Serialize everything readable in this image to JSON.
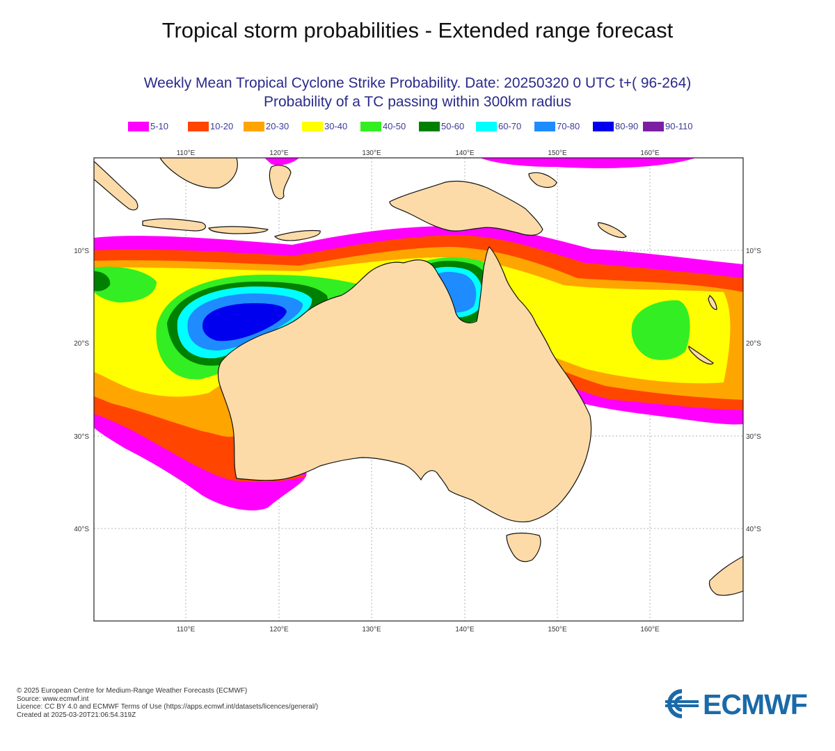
{
  "header": {
    "title": "Tropical storm probabilities - Extended range forecast"
  },
  "map": {
    "title_line1": "Weekly Mean Tropical Cyclone Strike Probability. Date: 20250320  0 UTC    t+( 96-264)",
    "title_line2": "Probability of a TC passing within  300km radius",
    "region": "Australia and surrounding ocean",
    "lon_labels": [
      "110°E",
      "120°E",
      "130°E",
      "140°E",
      "150°E",
      "160°E"
    ],
    "lat_labels": [
      "10°S",
      "20°S",
      "30°S",
      "40°S"
    ],
    "land_color": "#fcdba8",
    "legend": [
      {
        "label": "5-10",
        "color": "#ff00ff"
      },
      {
        "label": "10-20",
        "color": "#ff4500"
      },
      {
        "label": "20-30",
        "color": "#ffa500"
      },
      {
        "label": "30-40",
        "color": "#ffff00"
      },
      {
        "label": "40-50",
        "color": "#33ee22"
      },
      {
        "label": "50-60",
        "color": "#008000"
      },
      {
        "label": "60-70",
        "color": "#00ffff"
      },
      {
        "label": "70-80",
        "color": "#1e8cff"
      },
      {
        "label": "80-90",
        "color": "#0000ee"
      },
      {
        "label": "90-110",
        "color": "#7b1fa2"
      }
    ]
  },
  "footer": {
    "lines": [
      "© 2025 European Centre for Medium-Range Weather Forecasts (ECMWF)",
      "Source: www.ecmwf.int",
      "Licence: CC BY 4.0 and ECMWF Terms of Use (https://apps.ecmwf.int/datasets/licences/general/)",
      "Created at 2025-03-20T21:06:54.319Z"
    ]
  },
  "brand": {
    "name": "ECMWF",
    "color": "#1b6aa8"
  }
}
